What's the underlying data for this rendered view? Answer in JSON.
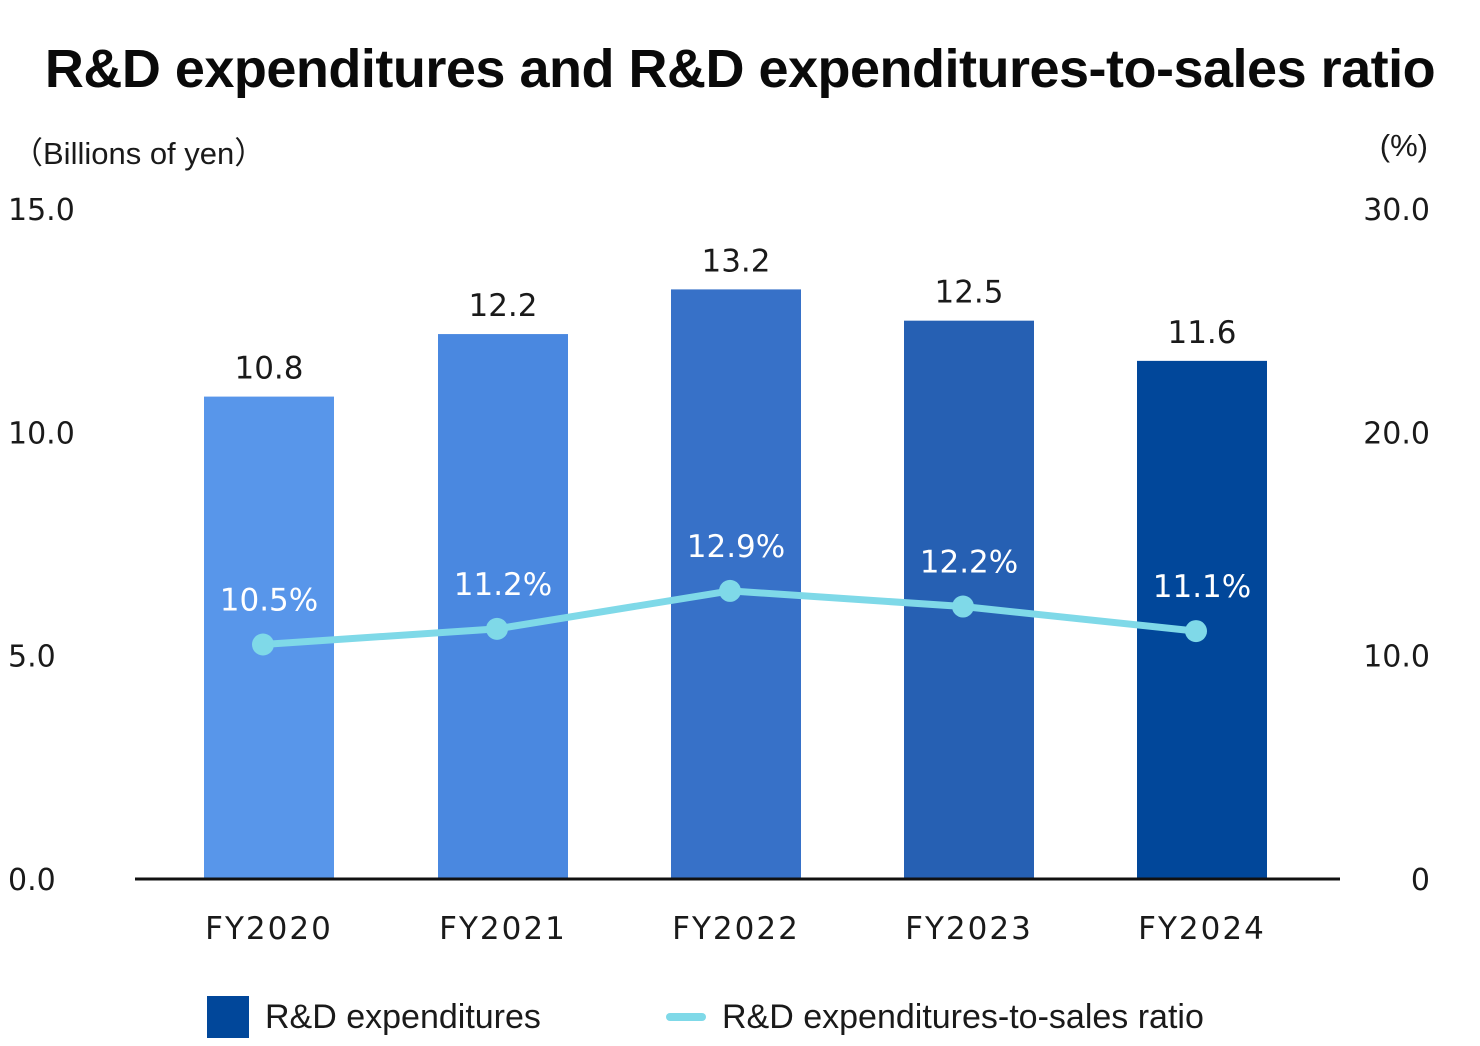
{
  "chart_data": {
    "type": "bar",
    "title": "R&D expenditures and R&D expenditures-to-sales ratio",
    "y_left_label": "（Billions of yen）",
    "y_right_label": "(%)",
    "y_left_ticks": [
      "0.0",
      "5.0",
      "10.0",
      "15.0"
    ],
    "y_right_ticks": [
      "0",
      "10.0",
      "20.0",
      "30.0"
    ],
    "ylim_left": [
      0,
      15
    ],
    "ylim_right": [
      0,
      30
    ],
    "categories": [
      "FY2020",
      "FY2021",
      "FY2022",
      "FY2023",
      "FY2024"
    ],
    "series": [
      {
        "name": "R&D expenditures",
        "type": "bar",
        "axis": "left",
        "values": [
          10.8,
          12.2,
          13.2,
          12.5,
          11.6
        ],
        "labels": [
          "10.8",
          "12.2",
          "13.2",
          "12.5",
          "11.6"
        ],
        "colors": [
          "#5896ea",
          "#4a88e0",
          "#3771c8",
          "#2660b3",
          "#01479a"
        ]
      },
      {
        "name": "R&D expenditures-to-sales ratio",
        "type": "line",
        "axis": "right",
        "values": [
          10.5,
          11.2,
          12.9,
          12.2,
          11.1
        ],
        "labels": [
          "10.5%",
          "11.2%",
          "12.9%",
          "12.2%",
          "11.1%"
        ],
        "color": "#7fd9e8"
      }
    ],
    "legend": {
      "position": "bottom",
      "items": [
        {
          "label": "R&D expenditures",
          "color": "#01479a"
        },
        {
          "label": "R&D expenditures-to-sales ratio",
          "color": "#7fd9e8"
        }
      ]
    }
  }
}
